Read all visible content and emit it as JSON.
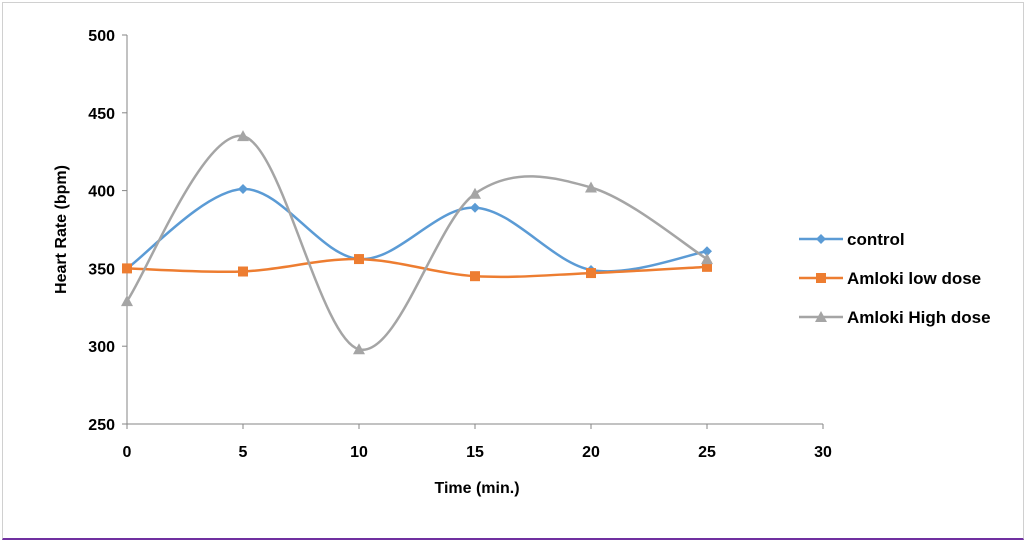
{
  "chart_data": {
    "type": "line",
    "smooth": true,
    "title": "",
    "xlabel": "Time (min.)",
    "ylabel": "Heart Rate (bpm)",
    "xlim": [
      0,
      30
    ],
    "ylim": [
      250,
      500
    ],
    "x_ticks": [
      0,
      5,
      10,
      15,
      20,
      25,
      30
    ],
    "y_ticks": [
      250,
      300,
      350,
      400,
      450,
      500
    ],
    "x": [
      0,
      5,
      10,
      15,
      20,
      25
    ],
    "grid": false,
    "legend_position": "right",
    "series": [
      {
        "name": "control",
        "color": "#5b9bd5",
        "marker": "diamond",
        "values": [
          350,
          401,
          356,
          389,
          349,
          361
        ]
      },
      {
        "name": "Amloki low dose",
        "color": "#ed7d31",
        "marker": "square",
        "values": [
          350,
          348,
          356,
          345,
          347,
          351
        ]
      },
      {
        "name": "Amloki High dose",
        "color": "#a5a5a5",
        "marker": "triangle",
        "values": [
          329,
          435,
          298,
          398,
          402,
          356
        ]
      }
    ]
  }
}
